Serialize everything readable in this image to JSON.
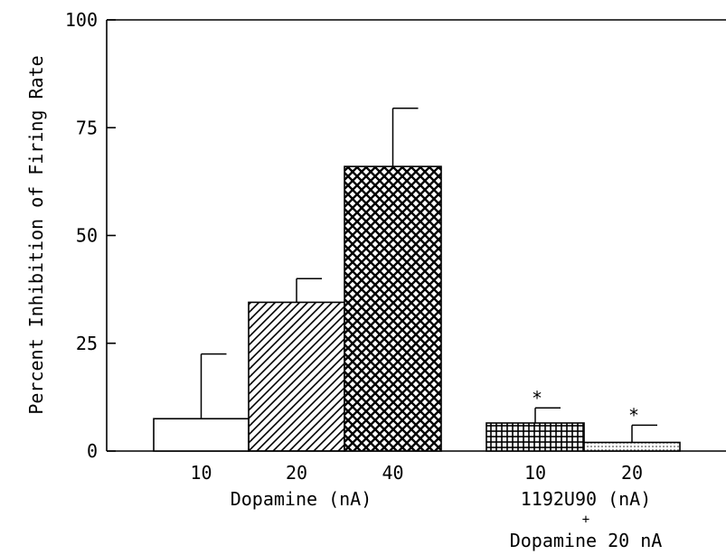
{
  "chart_data": {
    "type": "bar",
    "ylabel": "Percent Inhibition of Firing Rate",
    "ylim": [
      0,
      100
    ],
    "yticks": [
      0,
      25,
      50,
      75,
      100
    ],
    "y_tick_labels": [
      "0",
      "25",
      "50",
      "75",
      "100"
    ],
    "grid": false,
    "categories": [
      "10",
      "20",
      "40",
      "10",
      "20"
    ],
    "values": [
      7.5,
      34.5,
      66,
      6.5,
      2
    ],
    "error": [
      15,
      5.5,
      13.5,
      3.5,
      4
    ],
    "patterns": [
      "none",
      "diagonal",
      "crosshatch",
      "grid",
      "dots"
    ],
    "significance": [
      "",
      "",
      "",
      "*",
      "*"
    ],
    "groups": [
      {
        "label": "Dopamine (nA)",
        "members": [
          0,
          1,
          2
        ]
      },
      {
        "label": "1192U90 (nA)",
        "sublabel_plus": "+",
        "sublabel": "Dopamine 20 nA",
        "members": [
          3,
          4
        ]
      }
    ]
  }
}
